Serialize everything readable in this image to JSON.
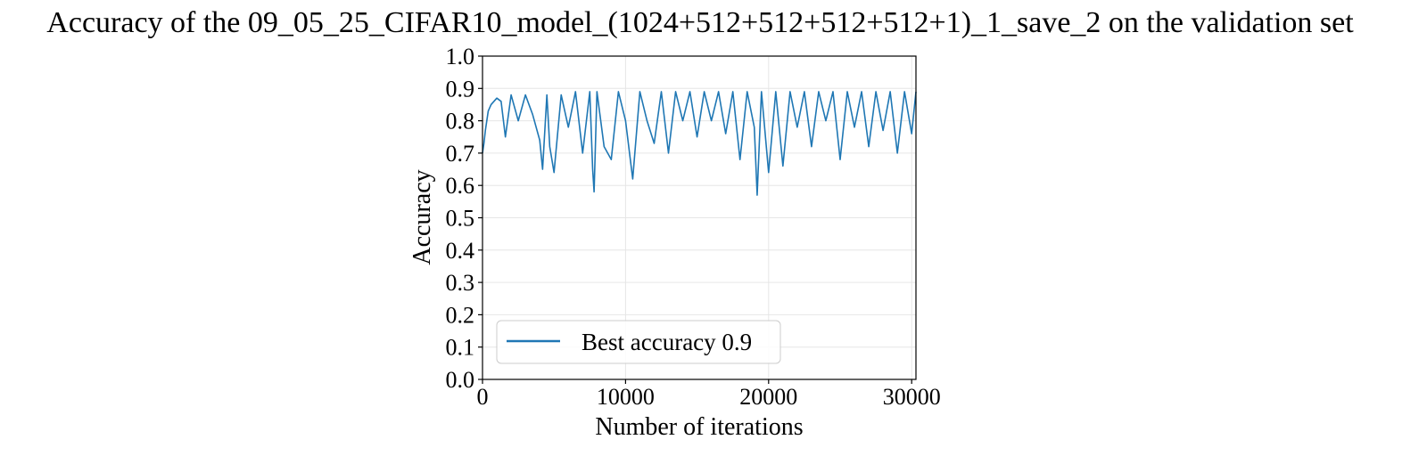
{
  "chart_data": {
    "type": "line",
    "title": "Accuracy of the 09_05_25_CIFAR10_model_(1024+512+512+512+512+1)_1_save_2 on the validation set",
    "xlabel": "Number of iterations",
    "ylabel": "Accuracy",
    "xlim": [
      0,
      30300
    ],
    "ylim": [
      0.0,
      1.0
    ],
    "xticks": [
      0,
      10000,
      20000,
      30000
    ],
    "xtick_labels": [
      "0",
      "10000",
      "20000",
      "30000"
    ],
    "yticks": [
      0.0,
      0.1,
      0.2,
      0.3,
      0.4,
      0.5,
      0.6,
      0.7,
      0.8,
      0.9,
      1.0
    ],
    "ytick_labels": [
      "0.0",
      "0.1",
      "0.2",
      "0.3",
      "0.4",
      "0.5",
      "0.6",
      "0.7",
      "0.8",
      "0.9",
      "1.0"
    ],
    "grid": true,
    "legend_position": "lower-left",
    "colors": {
      "series": "#1f77b4"
    },
    "series": [
      {
        "name": "Best accuracy 0.9",
        "x": [
          0,
          100,
          200,
          300,
          400,
          600,
          800,
          1000,
          1300,
          1600,
          2000,
          2500,
          3000,
          3500,
          4000,
          4200,
          4500,
          4700,
          5000,
          5500,
          6000,
          6500,
          7000,
          7500,
          7700,
          7800,
          8000,
          8500,
          9000,
          9500,
          10000,
          10500,
          11000,
          11500,
          12000,
          12500,
          13000,
          13500,
          14000,
          14500,
          15000,
          15500,
          16000,
          16500,
          17000,
          17500,
          18000,
          18500,
          19000,
          19200,
          19500,
          20000,
          20500,
          21000,
          21500,
          22000,
          22500,
          23000,
          23500,
          24000,
          24500,
          25000,
          25500,
          26000,
          26500,
          27000,
          27500,
          28000,
          28500,
          29000,
          29500,
          30000,
          30300
        ],
        "y": [
          0.7,
          0.73,
          0.77,
          0.8,
          0.83,
          0.85,
          0.86,
          0.87,
          0.86,
          0.75,
          0.88,
          0.8,
          0.88,
          0.82,
          0.74,
          0.65,
          0.88,
          0.72,
          0.64,
          0.88,
          0.78,
          0.89,
          0.7,
          0.89,
          0.65,
          0.58,
          0.89,
          0.72,
          0.68,
          0.89,
          0.8,
          0.62,
          0.89,
          0.8,
          0.73,
          0.89,
          0.7,
          0.89,
          0.8,
          0.89,
          0.75,
          0.89,
          0.8,
          0.89,
          0.76,
          0.89,
          0.68,
          0.89,
          0.78,
          0.57,
          0.89,
          0.64,
          0.89,
          0.66,
          0.89,
          0.78,
          0.89,
          0.72,
          0.89,
          0.8,
          0.89,
          0.68,
          0.89,
          0.78,
          0.89,
          0.72,
          0.89,
          0.77,
          0.89,
          0.7,
          0.89,
          0.76,
          0.89
        ]
      }
    ]
  }
}
